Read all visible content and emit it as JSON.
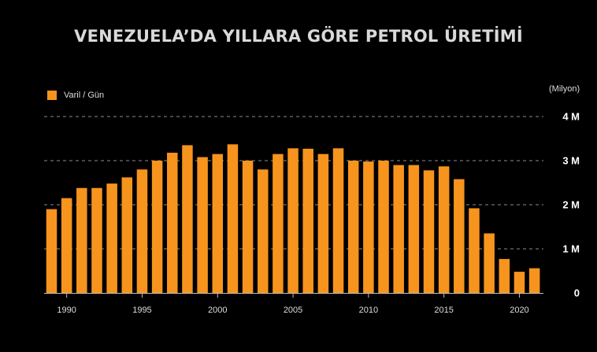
{
  "chart_data": {
    "type": "bar",
    "title": "VENEZUELA’DA YILLARA GÖRE PETROL ÜRETİMİ",
    "unit": "(Milyon)",
    "legend": {
      "label": "Varil / Gün",
      "placement": "top-left"
    },
    "series": [
      {
        "name": "Varil / Gün",
        "color": "#f7941d",
        "values": [
          1.9,
          2.15,
          2.38,
          2.38,
          2.48,
          2.62,
          2.8,
          3.0,
          3.18,
          3.35,
          3.08,
          3.15,
          3.37,
          3.0,
          2.8,
          3.15,
          3.28,
          3.27,
          3.15,
          3.28,
          3.0,
          2.98,
          3.0,
          2.9,
          2.9,
          2.78,
          2.87,
          2.58,
          1.92,
          1.35,
          0.77,
          0.48,
          0.56
        ]
      }
    ],
    "x": [
      1989,
      1990,
      1991,
      1992,
      1993,
      1994,
      1995,
      1996,
      1997,
      1998,
      1999,
      2000,
      2001,
      2002,
      2003,
      2004,
      2005,
      2006,
      2007,
      2008,
      2009,
      2010,
      2011,
      2012,
      2013,
      2014,
      2015,
      2016,
      2017,
      2018,
      2019,
      2020,
      2021
    ],
    "xticks": [
      {
        "year": 1990,
        "label": "1990"
      },
      {
        "year": 1995,
        "label": "1995"
      },
      {
        "year": 2000,
        "label": "2000"
      },
      {
        "year": 2005,
        "label": "2005"
      },
      {
        "year": 2010,
        "label": "2010"
      },
      {
        "year": 2015,
        "label": "2015"
      },
      {
        "year": 2020,
        "label": "2020"
      }
    ],
    "yticks": [
      {
        "value": 0,
        "label": "0"
      },
      {
        "value": 1,
        "label": "1 M"
      },
      {
        "value": 2,
        "label": "2 M"
      },
      {
        "value": 3,
        "label": "3 M"
      },
      {
        "value": 4,
        "label": "4 M"
      }
    ],
    "ylim": [
      0,
      4
    ],
    "grid": true,
    "grid_style": "dashed",
    "y_axis_side": "right"
  }
}
